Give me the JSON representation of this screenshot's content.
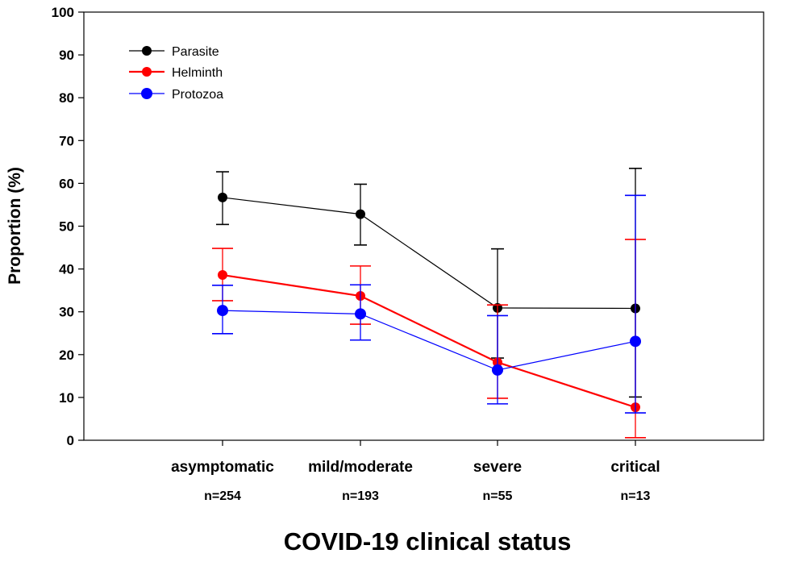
{
  "chart_data": {
    "type": "line",
    "title": "",
    "xlabel": "COVID-19 clinical status",
    "ylabel": "Proportion (%)",
    "ylim": [
      0,
      100
    ],
    "yticks": [
      0,
      10,
      20,
      30,
      40,
      50,
      60,
      70,
      80,
      90,
      100
    ],
    "categories": [
      "asymptomatic",
      "mild/moderate",
      "severe",
      "critical"
    ],
    "sample_sizes": [
      "n=254",
      "n=193",
      "n=55",
      "n=13"
    ],
    "grid": false,
    "legend": "top-left",
    "series": [
      {
        "name": "Parasite",
        "color": "#000000",
        "values": [
          56.7,
          52.8,
          30.9,
          30.8
        ],
        "ci_lower": [
          50.4,
          45.6,
          19.2,
          10.1
        ],
        "ci_upper": [
          62.7,
          59.8,
          44.7,
          63.5
        ]
      },
      {
        "name": "Helminth",
        "color": "#ff0000",
        "values": [
          38.6,
          33.7,
          18.2,
          7.7
        ],
        "ci_lower": [
          32.6,
          27.1,
          9.8,
          0.6
        ],
        "ci_upper": [
          44.8,
          40.7,
          31.6,
          46.9
        ]
      },
      {
        "name": "Protozoa",
        "color": "#0000ff",
        "values": [
          30.3,
          29.5,
          16.4,
          23.1
        ],
        "ci_lower": [
          24.9,
          23.4,
          8.5,
          6.4
        ],
        "ci_upper": [
          36.2,
          36.3,
          29.1,
          57.2
        ]
      }
    ]
  }
}
